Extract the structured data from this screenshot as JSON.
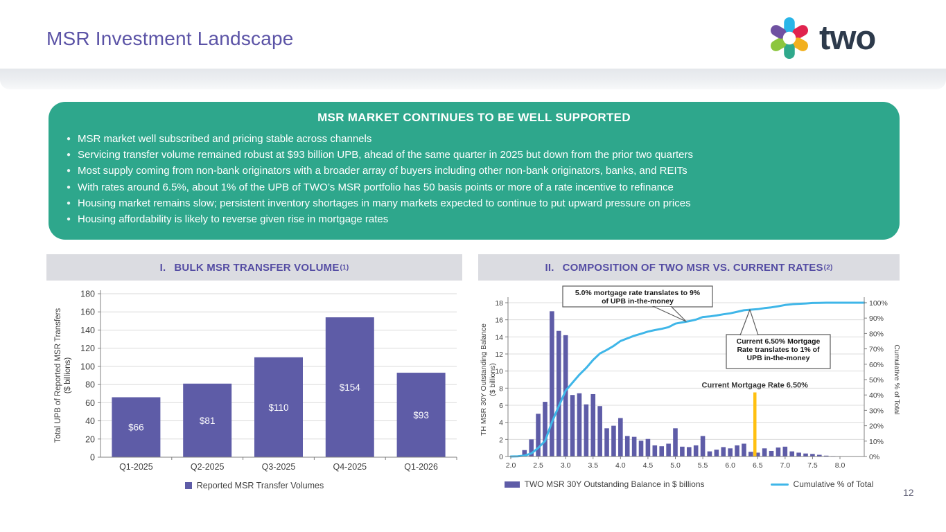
{
  "slide": {
    "title": "MSR Investment Landscape",
    "brand": "two",
    "page_number": "12"
  },
  "highlight_panel": {
    "title": "MSR MARKET CONTINUES TO BE WELL SUPPORTED",
    "bg_color": "#2EA78C",
    "bullets": [
      "MSR market well subscribed and pricing stable across channels",
      "Servicing transfer volume remained robust at $93 billion UPB, ahead of the same quarter in 2025 but down from the prior two quarters",
      "Most supply coming from non-bank originators with a broader array of buyers including other non-bank originators, banks, and REITs",
      "With rates around 6.5%, about 1% of the UPB of TWO’s MSR portfolio has 50 basis points or more of a rate incentive to refinance",
      "Housing market remains slow; persistent inventory shortages in many markets expected to continue to put upward pressure on prices",
      "Housing affordability is likely to reverse given rise in mortgage rates"
    ]
  },
  "panels": {
    "left": {
      "numeral": "I.",
      "title": "BULK MSR TRANSFER VOLUME",
      "footnote_marker": "(1)"
    },
    "right": {
      "numeral": "II.",
      "title": "COMPOSITION OF TWO MSR VS. CURRENT RATES",
      "footnote_marker": "(2)"
    }
  },
  "chart_data": [
    {
      "type": "bar",
      "title": "BULK MSR TRANSFER VOLUME",
      "categories": [
        "Q1-2025",
        "Q2-2025",
        "Q3-2025",
        "Q4-2025",
        "Q1-2026"
      ],
      "values": [
        66,
        81,
        110,
        154,
        93
      ],
      "bar_labels": [
        "$66",
        "$81",
        "$110",
        "$154",
        "$93"
      ],
      "ylabel_lines": [
        "Total UPB of Reported MSR Transfers",
        "($ billions)"
      ],
      "ylim": [
        0,
        180
      ],
      "yticks": [
        0,
        20,
        40,
        60,
        80,
        100,
        120,
        140,
        160,
        180
      ],
      "grid": true,
      "bar_color": "#5E5CA7",
      "label_color": "#FFFFFF",
      "legend": [
        {
          "label": "Reported MSR Transfer Volumes",
          "color": "#5E5CA7"
        }
      ]
    },
    {
      "type": "bar+line",
      "title": "COMPOSITION OF TWO MSR VS. CURRENT RATES",
      "x_start": 2.0,
      "x_step": 0.125,
      "xticks": [
        "2.0",
        "2.5",
        "3.0",
        "3.5",
        "4.0",
        "4.5",
        "5.0",
        "5.5",
        "6.0",
        "6.5",
        "7.0",
        "7.5",
        "8.0"
      ],
      "ylabel_left_lines": [
        "TH MSR 30Y Outstanding Balance",
        "($ billions)"
      ],
      "ylabel_right": "Cumulative % of Total",
      "ylim_left": [
        0,
        18
      ],
      "yticks_left": [
        0,
        2,
        4,
        6,
        8,
        10,
        12,
        14,
        16,
        18
      ],
      "yticks_right_pct": [
        0,
        10,
        20,
        30,
        40,
        50,
        60,
        70,
        80,
        90,
        100
      ],
      "grid": true,
      "series": [
        {
          "name": "TWO MSR 30Y Outstanding Balance in $ billions",
          "type": "bar",
          "color": "#5E5CA7",
          "values": [
            0,
            0.1,
            0.75,
            2.0,
            5.0,
            6.4,
            17.0,
            14.7,
            14.2,
            7.2,
            7.4,
            6.1,
            7.3,
            5.9,
            3.3,
            3.6,
            4.5,
            2.4,
            2.3,
            1.85,
            2.05,
            1.3,
            1.2,
            1.5,
            3.3,
            1.15,
            1.1,
            1.3,
            2.4,
            0.6,
            0.8,
            1.1,
            0.95,
            1.3,
            1.5,
            0.55,
            0.45,
            0.95,
            0.65,
            1.05,
            1.15,
            0.6,
            0.45,
            0.35,
            0.3,
            0.2,
            0.1,
            0.05,
            0
          ]
        },
        {
          "name": "Cumulative % of Total",
          "type": "line",
          "color": "#3FB6E8",
          "axis": "right",
          "values": [
            0,
            0.1,
            0.6,
            2.0,
            5.6,
            10.1,
            22.3,
            32.7,
            42.8,
            48.0,
            53.2,
            57.6,
            62.8,
            67.0,
            69.3,
            71.9,
            75.1,
            76.8,
            78.5,
            79.8,
            81.2,
            82.2,
            83.0,
            84.1,
            86.4,
            87.2,
            88.0,
            89.0,
            90.7,
            91.1,
            91.7,
            92.5,
            93.1,
            94.1,
            95.1,
            95.5,
            95.8,
            96.5,
            97.0,
            97.7,
            98.5,
            99.0,
            99.3,
            99.5,
            99.8,
            99.9,
            100,
            100,
            100
          ]
        }
      ],
      "marker_line": {
        "x": 6.5,
        "top_value": 7.5,
        "color": "#FFC010",
        "label": "Current Mortgage Rate 6.50%"
      },
      "annotations": [
        {
          "lines": [
            "5.0% mortgage rate translates to 9%",
            "of UPB in-the-money"
          ]
        },
        {
          "lines": [
            "Current 6.50% Mortgage",
            "Rate translates to 1% of",
            "UPB in-the-money"
          ]
        }
      ]
    }
  ],
  "legend_right": {
    "bars": "TWO MSR 30Y Outstanding Balance in $ billions",
    "line": "Cumulative % of Total"
  },
  "legend_left": "Reported MSR Transfer Volumes"
}
